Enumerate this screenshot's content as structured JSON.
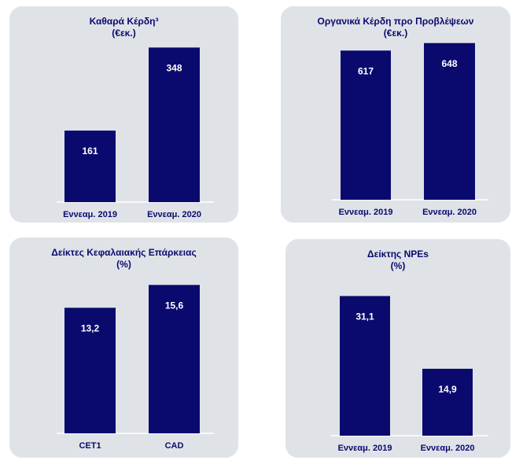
{
  "colors": {
    "bar": "#0a0a6e",
    "panel": "#dfe3e7",
    "value_label": "#ffffff",
    "text": "#0a0a6e",
    "axis": "#ffffff"
  },
  "chart_data": [
    {
      "type": "bar",
      "title": "Καθαρά Κέρδη³",
      "subtitle": "(€εκ.)",
      "categories": [
        "Εννεαμ. 2019",
        "Εννεαμ. 2020"
      ],
      "values": [
        161,
        348
      ],
      "value_labels": [
        "161",
        "348"
      ],
      "ylim": [
        0,
        370
      ],
      "grid": false
    },
    {
      "type": "bar",
      "title": "Οργανικά Κέρδη προ Προβλέψεων",
      "subtitle": "(€εκ.)",
      "categories": [
        "Εννεαμ. 2019",
        "Εννεαμ. 2020"
      ],
      "values": [
        617,
        648
      ],
      "value_labels": [
        "617",
        "648"
      ],
      "ylim": [
        0,
        670
      ],
      "grid": false
    },
    {
      "type": "bar",
      "title": "Δείκτες Κεφαλαιακής Επάρκειας",
      "subtitle": "(%)",
      "categories": [
        "CET1",
        "CAD"
      ],
      "values": [
        13.2,
        15.6
      ],
      "value_labels": [
        "13,2",
        "15,6"
      ],
      "ylim": [
        0,
        16.7
      ],
      "grid": false
    },
    {
      "type": "bar",
      "title": "Δείκτης NPEs",
      "subtitle": "(%)",
      "categories": [
        "Εννεαμ. 2019",
        "Εννεαμ. 2020"
      ],
      "values": [
        31.1,
        14.9
      ],
      "value_labels": [
        "31,1",
        "14,9"
      ],
      "ylim": [
        0,
        34.5
      ],
      "grid": false
    }
  ]
}
